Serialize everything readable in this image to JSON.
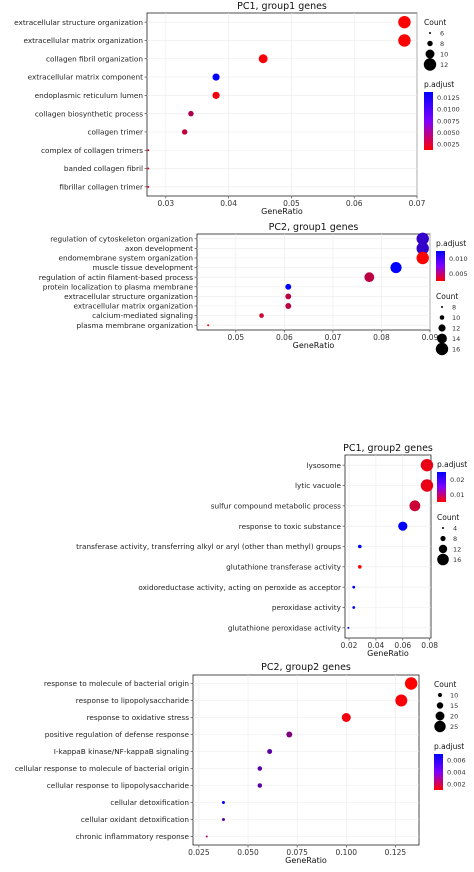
{
  "chart_data": [
    {
      "type": "scatter",
      "title": "PC1, group1 genes",
      "xlabel": "GeneRatio",
      "xlim": [
        0.027,
        0.07
      ],
      "xticks": [
        "0.03",
        "0.04",
        "0.05",
        "0.06",
        "0.07"
      ],
      "categories": [
        "extracellular structure organization",
        "extracellular matrix organization",
        "collagen fibril organization",
        "extracellular matrix component",
        "endoplasmic reticulum lumen",
        "collagen biosynthetic process",
        "collagen trimer",
        "complex of collagen trimers",
        "banded collagen fibril",
        "fibrillar collagen trimer"
      ],
      "gene_ratio": [
        0.068,
        0.068,
        0.0455,
        0.038,
        0.038,
        0.034,
        0.033,
        0.0272,
        0.0272,
        0.0272
      ],
      "count": [
        12,
        12,
        10,
        9,
        9,
        8,
        8,
        6,
        6,
        6
      ],
      "p_adjust": [
        0.0005,
        0.0005,
        0.0008,
        0.0132,
        0.0012,
        0.0045,
        0.0035,
        0.002,
        0.002,
        0.002
      ],
      "size_legend": {
        "title": "Count",
        "labels": [
          "6",
          "8",
          "10",
          "12"
        ]
      },
      "color_legend": {
        "title": "p.adjust",
        "labels": [
          "0.0125",
          "0.0100",
          "0.0075",
          "0.0050",
          "0.0025"
        ],
        "low_color": "#ff0000",
        "high_color": "#0000ff"
      },
      "legend_order": [
        "size",
        "color"
      ],
      "grid": true
    },
    {
      "type": "scatter",
      "title": "PC2, group1 genes",
      "xlabel": "GeneRatio",
      "xlim": [
        0.042,
        0.09
      ],
      "xticks": [
        "0.05",
        "0.06",
        "0.07",
        "0.08",
        "0.09"
      ],
      "categories": [
        "regulation of cytoskeleton organization",
        "axon development",
        "endomembrane system organization",
        "muscle tissue development",
        "regulation of actin filament-based process",
        "protein localization to plasma membrane",
        "extracellular structure organization",
        "extracellular matrix organization",
        "calcium-mediated signaling",
        "plasma membrane organization"
      ],
      "gene_ratio": [
        0.0885,
        0.0885,
        0.0885,
        0.083,
        0.0775,
        0.0608,
        0.0608,
        0.0608,
        0.0553,
        0.0443
      ],
      "count": [
        16,
        16,
        16,
        15,
        14,
        11,
        11,
        11,
        10,
        8
      ],
      "p_adjust": [
        0.0105,
        0.0105,
        0.0015,
        0.0128,
        0.0045,
        0.0128,
        0.0045,
        0.0045,
        0.0035,
        0.0015
      ],
      "size_legend": {
        "title": "Count",
        "labels": [
          "8",
          "10",
          "12",
          "14",
          "16"
        ]
      },
      "color_legend": {
        "title": "p.adjust",
        "labels": [
          "0.010",
          "0.005"
        ],
        "low_color": "#ff0000",
        "high_color": "#0000ff"
      },
      "legend_order": [
        "color",
        "size"
      ],
      "grid": true
    },
    {
      "type": "scatter",
      "title": "PC1, group2 genes",
      "xlabel": "GeneRatio",
      "xlim": [
        0.017,
        0.081
      ],
      "xticks": [
        "0.02",
        "0.04",
        "0.06",
        "0.08"
      ],
      "categories": [
        "lysosome",
        "lytic vacuole",
        "sulfur compound metabolic process",
        "response to toxic substance",
        "transferase activity, transferring alkyl or aryl (other than methyl) groups",
        "glutathione transferase activity",
        "oxidoreductase activity, acting on peroxide as acceptor",
        "peroxidase activity",
        "glutathione peroxidase activity"
      ],
      "gene_ratio": [
        0.078,
        0.078,
        0.069,
        0.06,
        0.028,
        0.028,
        0.0235,
        0.0235,
        0.0195
      ],
      "count": [
        17,
        17,
        15,
        13,
        6,
        6,
        5,
        5,
        4
      ],
      "p_adjust": [
        0.004,
        0.004,
        0.007,
        0.026,
        0.026,
        0.002,
        0.026,
        0.026,
        0.026
      ],
      "size_legend": {
        "title": "Count",
        "labels": [
          "4",
          "8",
          "12",
          "16"
        ]
      },
      "color_legend": {
        "title": "p.adjust",
        "labels": [
          "0.02",
          "0.01"
        ],
        "low_color": "#ff0000",
        "high_color": "#0000ff"
      },
      "legend_order": [
        "color",
        "size"
      ],
      "grid": true
    },
    {
      "type": "scatter",
      "title": "PC2, group2 genes",
      "xlabel": "GeneRatio",
      "xlim": [
        0.022,
        0.137
      ],
      "xticks": [
        "0.025",
        "0.050",
        "0.075",
        "0.100",
        "0.125"
      ],
      "categories": [
        "response to molecule of bacterial origin",
        "response to lipopolysaccharide",
        "response to oxidative stress",
        "positive regulation of defense response",
        "I-kappaB kinase/NF-kappaB signaling",
        "cellular response to molecule of bacterial origin",
        "cellular response to lipopolysaccharide",
        "cellular detoxification",
        "cellular oxidant detoxification",
        "chronic inflammatory response"
      ],
      "gene_ratio": [
        0.133,
        0.128,
        0.1,
        0.071,
        0.061,
        0.056,
        0.056,
        0.0375,
        0.0375,
        0.029
      ],
      "count": [
        27,
        26,
        20,
        14,
        12,
        11,
        11,
        8,
        8,
        6
      ],
      "p_adjust": [
        0.0002,
        0.0004,
        0.0005,
        0.0035,
        0.0045,
        0.0045,
        0.0045,
        0.0068,
        0.0045,
        0.0025
      ],
      "size_legend": {
        "title": "Count",
        "labels": [
          "10",
          "15",
          "20",
          "25"
        ]
      },
      "color_legend": {
        "title": "p.adjust",
        "labels": [
          "0.006",
          "0.004",
          "0.002"
        ],
        "low_color": "#ff0000",
        "high_color": "#0000ff"
      },
      "legend_order": [
        "size",
        "color"
      ],
      "grid": true
    }
  ]
}
